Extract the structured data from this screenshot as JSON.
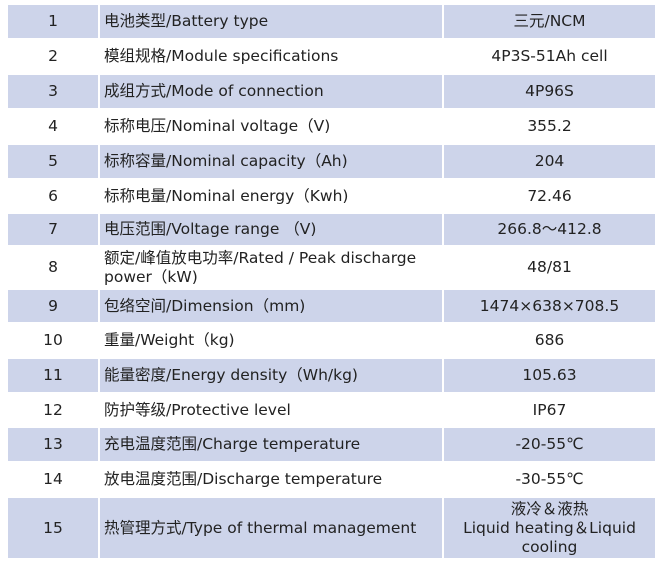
{
  "table": {
    "rows": [
      [
        "1",
        "电池类型/Battery type",
        "三元/NCM"
      ],
      [
        "2",
        "模组规格/Module specifications",
        "4P3S-51Ah cell"
      ],
      [
        "3",
        "成组方式/Mode of connection",
        "4P96S"
      ],
      [
        "4",
        "标称电压/Nominal voltage（V)",
        "355.2"
      ],
      [
        "5",
        "标称容量/Nominal capacity（Ah)",
        "204"
      ],
      [
        "6",
        "标称电量/Nominal energy（Kwh)",
        "72.46"
      ],
      [
        "7",
        "电压范围/Voltage range （V)",
        "266.8～412.8"
      ],
      [
        "8",
        "额定/峰值放电功率/Rated / Peak discharge power（kW)",
        "48/81"
      ],
      [
        "9",
        "包络空间/Dimension（mm)",
        "1474×638×708.5"
      ],
      [
        "10",
        "重量/Weight（kg)",
        "686"
      ],
      [
        "11",
        "能量密度/Energy density（Wh/kg)",
        "105.63"
      ],
      [
        "12",
        "防护等级/Protective level",
        "IP67"
      ],
      [
        "13",
        "充电温度范围/Charge temperature",
        "-20-55℃"
      ],
      [
        "14",
        "放电温度范围/Discharge temperature",
        "-30-55℃"
      ],
      [
        "15",
        "热管理方式/Type of thermal management",
        [
          "液冷＆液热",
          "Liquid heating＆Liquid cooling"
        ]
      ]
    ]
  }
}
